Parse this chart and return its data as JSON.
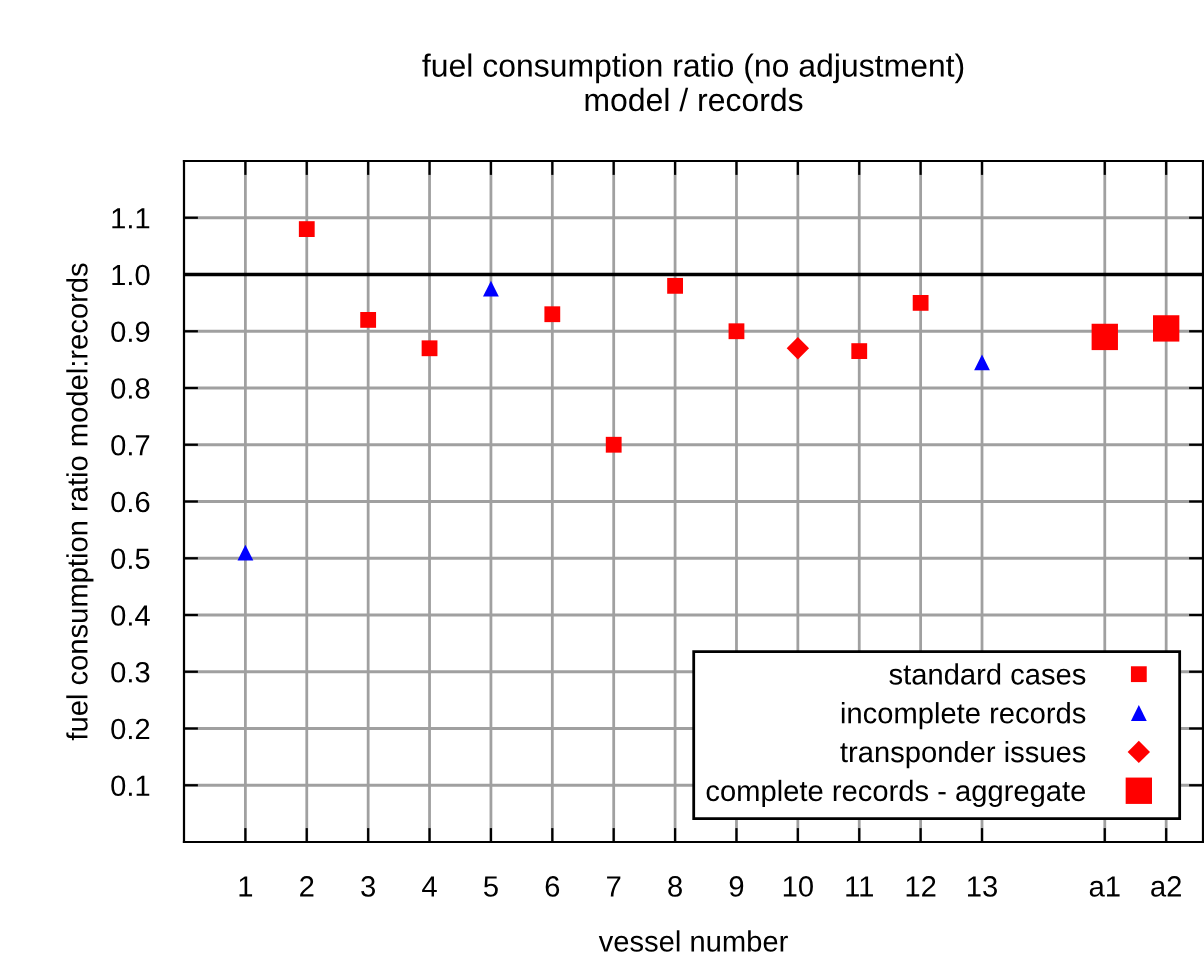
{
  "chart_data": {
    "type": "scatter",
    "title": "fuel consumption ratio (no adjustment)\nmodel / records",
    "xlabel": "vessel number",
    "ylabel": "fuel consumption ratio model:records",
    "xlim": [
      0,
      16.6
    ],
    "ylim": [
      0,
      1.2
    ],
    "xticks": [
      1,
      2,
      3,
      4,
      5,
      6,
      7,
      8,
      9,
      10,
      11,
      12,
      13,
      {
        "value": 15,
        "label": "a1"
      },
      {
        "value": 16,
        "label": "a2"
      }
    ],
    "yticks": [
      0.1,
      0.2,
      0.3,
      0.4,
      0.5,
      0.6,
      0.7,
      0.8,
      0.9,
      {
        "value": 1.0,
        "label": "1.0"
      },
      1.1
    ],
    "grid": true,
    "legend": "bottom right",
    "ref_lines": [
      {
        "axis": "y",
        "value": 1.0,
        "color": "#000000"
      }
    ],
    "series": [
      {
        "name": "standard cases",
        "color": "#ff0000",
        "marker": "square",
        "x": [
          2,
          3,
          4,
          6,
          7,
          8,
          9,
          11,
          12
        ],
        "values": [
          1.08,
          0.92,
          0.87,
          0.93,
          0.7,
          0.98,
          0.9,
          0.865,
          0.95
        ],
        "sizes": [
          0.36,
          0.36,
          0.36,
          0.36,
          0.36,
          0.36,
          0.36,
          0.36,
          0.36
        ]
      },
      {
        "name": "incomplete records",
        "color": "#0000ff",
        "marker": "triangle",
        "x": [
          1,
          5,
          13
        ],
        "values": [
          0.51,
          0.975,
          0.845
        ],
        "sizes": [
          0.18,
          0.18,
          0.18
        ]
      },
      {
        "name": "transponder issues",
        "color": "#ff0000",
        "marker": "diamond",
        "x": [
          10
        ],
        "values": [
          0.87
        ],
        "sizes": [
          0.36
        ]
      },
      {
        "name": "complete records - aggregate",
        "color": "#ff0000",
        "marker": "square",
        "x": [
          15,
          16
        ],
        "values": [
          0.89,
          0.905
        ],
        "sizes": [
          1,
          1
        ]
      }
    ]
  }
}
